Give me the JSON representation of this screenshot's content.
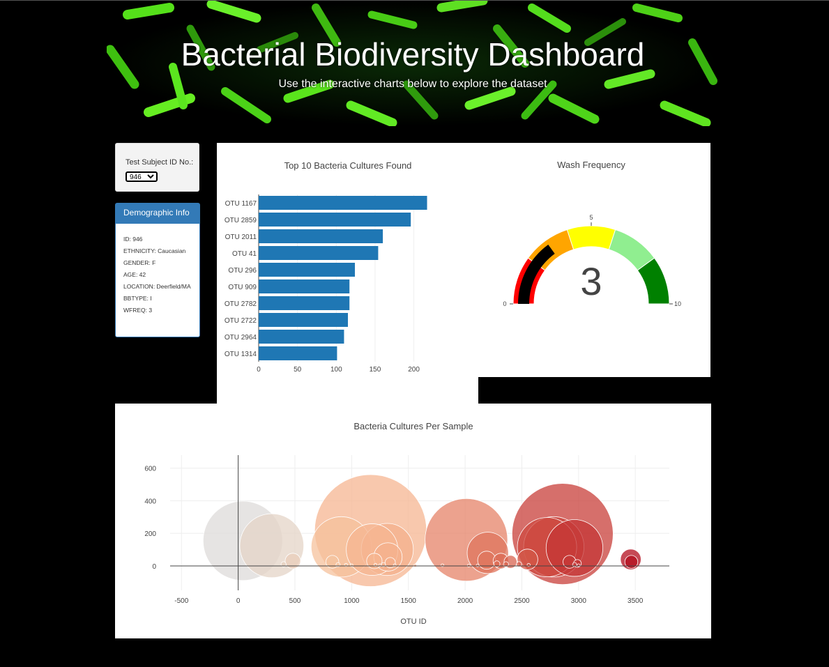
{
  "header": {
    "title": "Bacterial Biodiversity Dashboard",
    "subtitle": "Use the interactive charts below to explore the dataset"
  },
  "selector": {
    "label": "Test Subject ID No.:",
    "selected": "946"
  },
  "demographics": {
    "heading": "Demographic Info",
    "items": [
      "ID: 946",
      "ETHNICITY: Caucasian",
      "GENDER: F",
      "AGE: 42",
      "LOCATION: Deerfield/MA",
      "BBTYPE: I",
      "WFREQ: 3"
    ]
  },
  "colors": {
    "bar": "#1f77b4",
    "panel_primary": "#337ab7",
    "gauge": [
      "#ff0000",
      "#ffa500",
      "#ffff00",
      "#90ee90",
      "#008000"
    ],
    "gauge_bar": "#000000"
  },
  "chart_data": [
    {
      "type": "bar",
      "orientation": "horizontal",
      "title": "Top 10 Bacteria Cultures Found",
      "categories": [
        "OTU 1167",
        "OTU 2859",
        "OTU 2011",
        "OTU 41",
        "OTU 296",
        "OTU 909",
        "OTU 2782",
        "OTU 2722",
        "OTU 2964",
        "OTU 1314"
      ],
      "values": [
        217,
        196,
        160,
        154,
        124,
        117,
        117,
        115,
        110,
        101
      ],
      "xlim": [
        0,
        230
      ],
      "xticks": [
        0,
        50,
        100,
        150,
        200
      ]
    },
    {
      "type": "gauge",
      "title": "Wash Frequency",
      "value": 3,
      "value_label": "3",
      "range": [
        0,
        10
      ],
      "ticks": [
        0,
        5,
        10
      ],
      "steps": [
        [
          0,
          2
        ],
        [
          2,
          4
        ],
        [
          4,
          6
        ],
        [
          6,
          8
        ],
        [
          8,
          10
        ]
      ]
    },
    {
      "type": "scatter",
      "style": "bubble",
      "title": "Bacteria Cultures Per Sample",
      "xlabel": "OTU ID",
      "xlim": [
        -600,
        3800
      ],
      "ylim": [
        -150,
        680
      ],
      "xticks": [
        -500,
        0,
        500,
        1000,
        1500,
        2000,
        2500,
        3000,
        3500
      ],
      "yticks": [
        0,
        200,
        400,
        600
      ],
      "points": [
        {
          "x": 41,
          "y": 154
        },
        {
          "x": 296,
          "y": 124
        },
        {
          "x": 482,
          "y": 30
        },
        {
          "x": 400,
          "y": 10
        },
        {
          "x": 830,
          "y": 25
        },
        {
          "x": 880,
          "y": 8
        },
        {
          "x": 909,
          "y": 117
        },
        {
          "x": 950,
          "y": 6
        },
        {
          "x": 1000,
          "y": 4
        },
        {
          "x": 1167,
          "y": 217
        },
        {
          "x": 1180,
          "y": 100
        },
        {
          "x": 1200,
          "y": 30
        },
        {
          "x": 1210,
          "y": 6
        },
        {
          "x": 1250,
          "y": 4
        },
        {
          "x": 1314,
          "y": 101
        },
        {
          "x": 1320,
          "y": 55
        },
        {
          "x": 1340,
          "y": 20
        },
        {
          "x": 1280,
          "y": 8
        },
        {
          "x": 1380,
          "y": 4
        },
        {
          "x": 1560,
          "y": 2
        },
        {
          "x": 1800,
          "y": 4
        },
        {
          "x": 2011,
          "y": 160
        },
        {
          "x": 2032,
          "y": 2
        },
        {
          "x": 2110,
          "y": 3
        },
        {
          "x": 2190,
          "y": 35
        },
        {
          "x": 2200,
          "y": 80
        },
        {
          "x": 2280,
          "y": 12
        },
        {
          "x": 2315,
          "y": 30
        },
        {
          "x": 2360,
          "y": 10
        },
        {
          "x": 2400,
          "y": 25
        },
        {
          "x": 2475,
          "y": 10
        },
        {
          "x": 2550,
          "y": 40
        },
        {
          "x": 2560,
          "y": 6
        },
        {
          "x": 2722,
          "y": 115
        },
        {
          "x": 2782,
          "y": 117
        },
        {
          "x": 2859,
          "y": 196
        },
        {
          "x": 2964,
          "y": 110
        },
        {
          "x": 2920,
          "y": 25
        },
        {
          "x": 2965,
          "y": 8
        },
        {
          "x": 2990,
          "y": 15
        },
        {
          "x": 3000,
          "y": 4
        },
        {
          "x": 3460,
          "y": 40
        },
        {
          "x": 3465,
          "y": 25
        }
      ]
    }
  ]
}
